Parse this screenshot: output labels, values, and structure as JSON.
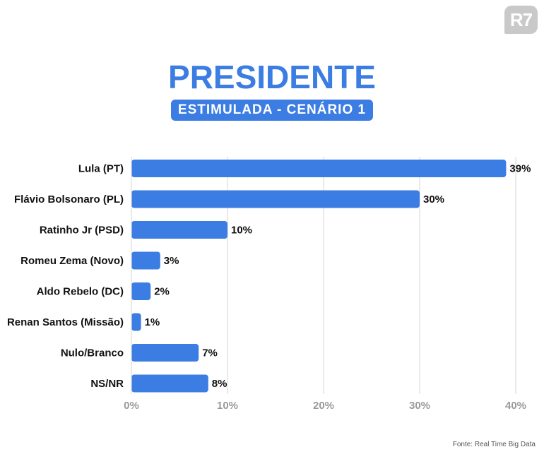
{
  "brand": {
    "logo_text": "R7"
  },
  "header": {
    "title": "PRESIDENTE",
    "subtitle": "ESTIMULADA - CENÁRIO 1"
  },
  "footer": {
    "source": "Fonte: Real Time Big Data"
  },
  "colors": {
    "bar": "#3b7de3",
    "title": "#3b7de3",
    "grid": "#dddddd",
    "tick": "#9a9a9a",
    "label": "#111111"
  },
  "chart_data": {
    "type": "bar",
    "orientation": "horizontal",
    "categories": [
      "Lula (PT)",
      "Flávio Bolsonaro (PL)",
      "Ratinho Jr (PSD)",
      "Romeu Zema (Novo)",
      "Aldo Rebelo (DC)",
      "Renan Santos (Missão)",
      "Nulo/Branco",
      "NS/NR"
    ],
    "values": [
      39,
      30,
      10,
      3,
      2,
      1,
      7,
      8
    ],
    "value_labels": [
      "39%",
      "30%",
      "10%",
      "3%",
      "2%",
      "1%",
      "7%",
      "8%"
    ],
    "xlim": [
      0,
      40
    ],
    "xticks": [
      0,
      10,
      20,
      30,
      40
    ],
    "xtick_labels": [
      "0%",
      "10%",
      "20%",
      "30%",
      "40%"
    ],
    "grid": true
  }
}
